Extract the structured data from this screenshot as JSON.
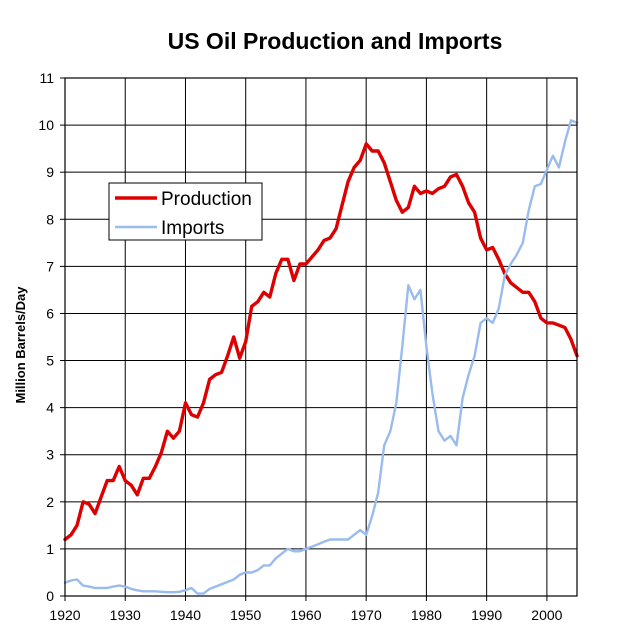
{
  "chart_data": {
    "type": "line",
    "title": "US Oil Production and Imports",
    "xlabel": "",
    "ylabel": "Million Barrels/Day",
    "xlim": [
      1920,
      2005
    ],
    "ylim": [
      0,
      11
    ],
    "x_ticks": [
      "1920",
      "1930",
      "1940",
      "1950",
      "1960",
      "1970",
      "1980",
      "1990",
      "2000"
    ],
    "y_ticks": [
      "0",
      "1",
      "2",
      "3",
      "4",
      "5",
      "6",
      "7",
      "8",
      "9",
      "10",
      "11"
    ],
    "grid": true,
    "legend_position": "upper-left",
    "series": [
      {
        "name": "Production",
        "color": "#dd0000",
        "points": [
          [
            1920,
            1.2
          ],
          [
            1921,
            1.3
          ],
          [
            1922,
            1.5
          ],
          [
            1923,
            2.0
          ],
          [
            1924,
            1.95
          ],
          [
            1925,
            1.75
          ],
          [
            1926,
            2.1
          ],
          [
            1927,
            2.45
          ],
          [
            1928,
            2.45
          ],
          [
            1929,
            2.75
          ],
          [
            1930,
            2.45
          ],
          [
            1931,
            2.35
          ],
          [
            1932,
            2.15
          ],
          [
            1933,
            2.5
          ],
          [
            1934,
            2.5
          ],
          [
            1935,
            2.75
          ],
          [
            1936,
            3.05
          ],
          [
            1937,
            3.5
          ],
          [
            1938,
            3.35
          ],
          [
            1939,
            3.5
          ],
          [
            1940,
            4.1
          ],
          [
            1941,
            3.85
          ],
          [
            1942,
            3.8
          ],
          [
            1943,
            4.1
          ],
          [
            1944,
            4.6
          ],
          [
            1945,
            4.7
          ],
          [
            1946,
            4.75
          ],
          [
            1947,
            5.1
          ],
          [
            1948,
            5.5
          ],
          [
            1949,
            5.05
          ],
          [
            1950,
            5.4
          ],
          [
            1951,
            6.15
          ],
          [
            1952,
            6.25
          ],
          [
            1953,
            6.45
          ],
          [
            1954,
            6.35
          ],
          [
            1955,
            6.85
          ],
          [
            1956,
            7.15
          ],
          [
            1957,
            7.15
          ],
          [
            1958,
            6.7
          ],
          [
            1959,
            7.05
          ],
          [
            1960,
            7.05
          ],
          [
            1961,
            7.2
          ],
          [
            1962,
            7.35
          ],
          [
            1963,
            7.55
          ],
          [
            1964,
            7.6
          ],
          [
            1965,
            7.8
          ],
          [
            1966,
            8.3
          ],
          [
            1967,
            8.8
          ],
          [
            1968,
            9.1
          ],
          [
            1969,
            9.25
          ],
          [
            1970,
            9.6
          ],
          [
            1971,
            9.45
          ],
          [
            1972,
            9.45
          ],
          [
            1973,
            9.2
          ],
          [
            1974,
            8.8
          ],
          [
            1975,
            8.4
          ],
          [
            1976,
            8.15
          ],
          [
            1977,
            8.25
          ],
          [
            1978,
            8.7
          ],
          [
            1979,
            8.55
          ],
          [
            1980,
            8.6
          ],
          [
            1981,
            8.55
          ],
          [
            1982,
            8.65
          ],
          [
            1983,
            8.7
          ],
          [
            1984,
            8.9
          ],
          [
            1985,
            8.95
          ],
          [
            1986,
            8.7
          ],
          [
            1987,
            8.35
          ],
          [
            1988,
            8.15
          ],
          [
            1989,
            7.6
          ],
          [
            1990,
            7.35
          ],
          [
            1991,
            7.4
          ],
          [
            1992,
            7.15
          ],
          [
            1993,
            6.85
          ],
          [
            1994,
            6.65
          ],
          [
            1995,
            6.55
          ],
          [
            1996,
            6.45
          ],
          [
            1997,
            6.45
          ],
          [
            1998,
            6.25
          ],
          [
            1999,
            5.9
          ],
          [
            2000,
            5.8
          ],
          [
            2001,
            5.8
          ],
          [
            2002,
            5.75
          ],
          [
            2003,
            5.7
          ],
          [
            2004,
            5.45
          ],
          [
            2005,
            5.1
          ]
        ]
      },
      {
        "name": "Imports",
        "color": "#99bbee",
        "points": [
          [
            1920,
            0.28
          ],
          [
            1921,
            0.33
          ],
          [
            1922,
            0.35
          ],
          [
            1923,
            0.22
          ],
          [
            1924,
            0.2
          ],
          [
            1925,
            0.17
          ],
          [
            1926,
            0.17
          ],
          [
            1927,
            0.17
          ],
          [
            1928,
            0.2
          ],
          [
            1929,
            0.22
          ],
          [
            1930,
            0.2
          ],
          [
            1931,
            0.15
          ],
          [
            1932,
            0.12
          ],
          [
            1933,
            0.1
          ],
          [
            1934,
            0.1
          ],
          [
            1935,
            0.1
          ],
          [
            1936,
            0.09
          ],
          [
            1937,
            0.08
          ],
          [
            1938,
            0.08
          ],
          [
            1939,
            0.09
          ],
          [
            1940,
            0.12
          ],
          [
            1941,
            0.17
          ],
          [
            1942,
            0.05
          ],
          [
            1943,
            0.05
          ],
          [
            1944,
            0.15
          ],
          [
            1945,
            0.2
          ],
          [
            1946,
            0.25
          ],
          [
            1947,
            0.3
          ],
          [
            1948,
            0.35
          ],
          [
            1949,
            0.45
          ],
          [
            1950,
            0.5
          ],
          [
            1951,
            0.5
          ],
          [
            1952,
            0.55
          ],
          [
            1953,
            0.65
          ],
          [
            1954,
            0.65
          ],
          [
            1955,
            0.8
          ],
          [
            1956,
            0.9
          ],
          [
            1957,
            1.0
          ],
          [
            1958,
            0.95
          ],
          [
            1959,
            0.95
          ],
          [
            1960,
            1.0
          ],
          [
            1961,
            1.05
          ],
          [
            1962,
            1.1
          ],
          [
            1963,
            1.15
          ],
          [
            1964,
            1.2
          ],
          [
            1965,
            1.2
          ],
          [
            1966,
            1.2
          ],
          [
            1967,
            1.2
          ],
          [
            1968,
            1.3
          ],
          [
            1969,
            1.4
          ],
          [
            1970,
            1.3
          ],
          [
            1971,
            1.7
          ],
          [
            1972,
            2.2
          ],
          [
            1973,
            3.2
          ],
          [
            1974,
            3.5
          ],
          [
            1975,
            4.1
          ],
          [
            1976,
            5.3
          ],
          [
            1977,
            6.6
          ],
          [
            1978,
            6.3
          ],
          [
            1979,
            6.5
          ],
          [
            1980,
            5.3
          ],
          [
            1981,
            4.3
          ],
          [
            1982,
            3.5
          ],
          [
            1983,
            3.3
          ],
          [
            1984,
            3.4
          ],
          [
            1985,
            3.2
          ],
          [
            1986,
            4.2
          ],
          [
            1987,
            4.7
          ],
          [
            1988,
            5.1
          ],
          [
            1989,
            5.8
          ],
          [
            1990,
            5.9
          ],
          [
            1991,
            5.8
          ],
          [
            1992,
            6.1
          ],
          [
            1993,
            6.8
          ],
          [
            1994,
            7.05
          ],
          [
            1995,
            7.25
          ],
          [
            1996,
            7.5
          ],
          [
            1997,
            8.2
          ],
          [
            1998,
            8.7
          ],
          [
            1999,
            8.75
          ],
          [
            2000,
            9.05
          ],
          [
            2001,
            9.35
          ],
          [
            2002,
            9.1
          ],
          [
            2003,
            9.65
          ],
          [
            2004,
            10.1
          ],
          [
            2005,
            10.05
          ]
        ]
      }
    ]
  }
}
